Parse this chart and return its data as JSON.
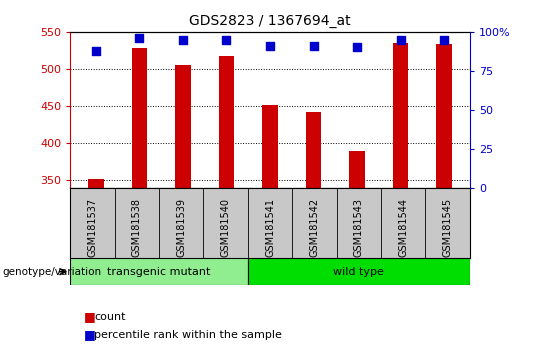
{
  "title": "GDS2823 / 1367694_at",
  "samples": [
    "GSM181537",
    "GSM181538",
    "GSM181539",
    "GSM181540",
    "GSM181541",
    "GSM181542",
    "GSM181543",
    "GSM181544",
    "GSM181545"
  ],
  "counts": [
    352,
    528,
    505,
    517,
    452,
    442,
    390,
    535,
    533
  ],
  "percentile_ranks": [
    88,
    96,
    95,
    95,
    91,
    91,
    90,
    95,
    95
  ],
  "ylim_left": [
    340,
    550
  ],
  "ylim_right": [
    0,
    100
  ],
  "yticks_left": [
    350,
    400,
    450,
    500,
    550
  ],
  "yticks_right": [
    0,
    25,
    50,
    75,
    100
  ],
  "right_tick_labels": [
    "0",
    "25",
    "50",
    "75",
    "100%"
  ],
  "groups": [
    {
      "label": "transgenic mutant",
      "indices": [
        0,
        1,
        2,
        3
      ],
      "color": "#90EE90"
    },
    {
      "label": "wild type",
      "indices": [
        4,
        5,
        6,
        7,
        8
      ],
      "color": "#00DD00"
    }
  ],
  "bar_color": "#CC0000",
  "dot_color": "#0000CC",
  "bg_color": "#FFFFFF",
  "plot_bg": "#FFFFFF",
  "sample_band_color": "#C8C8C8",
  "genotype_label": "genotype/variation",
  "legend_count_label": "count",
  "legend_pct_label": "percentile rank within the sample",
  "bar_width": 0.35,
  "dot_size": 40
}
